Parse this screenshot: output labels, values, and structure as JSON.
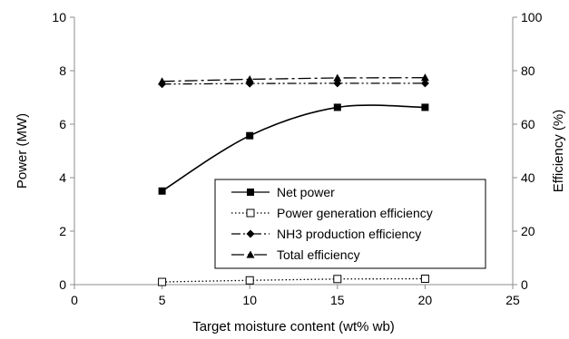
{
  "chart_data": {
    "type": "line",
    "x": [
      5,
      10,
      15,
      20
    ],
    "xlabel": "Target moisture content (wt% wb)",
    "ylabel": "Power (MW)",
    "y2label": "Efficiency (%)",
    "xlim": [
      0,
      25
    ],
    "ylim": [
      0,
      10
    ],
    "y2lim": [
      0,
      100
    ],
    "xticks": [
      "0",
      "5",
      "10",
      "15",
      "20",
      "25"
    ],
    "yticks": [
      "0",
      "2",
      "4",
      "6",
      "8",
      "10"
    ],
    "y2ticks": [
      "0",
      "20",
      "40",
      "60",
      "80",
      "100"
    ],
    "grid": false,
    "legend_position": "lower-right",
    "series": [
      {
        "name": "Net power",
        "axis": "left",
        "values": [
          3.5,
          5.57,
          6.63,
          6.63
        ],
        "marker": "filled-square",
        "line": "solid-smooth"
      },
      {
        "name": "Power generation efficiency",
        "axis": "right",
        "values": [
          1.0,
          1.6,
          2.1,
          2.2
        ],
        "marker": "open-square",
        "line": "dotted"
      },
      {
        "name": "NH3 production efficiency",
        "axis": "right",
        "values": [
          75.0,
          75.2,
          75.3,
          75.3
        ],
        "marker": "filled-diamond",
        "line": "dash-dot-dot"
      },
      {
        "name": "Total efficiency",
        "axis": "right",
        "values": [
          76.0,
          76.8,
          77.3,
          77.4
        ],
        "marker": "filled-triangle",
        "line": "long-dash-dot"
      }
    ]
  }
}
